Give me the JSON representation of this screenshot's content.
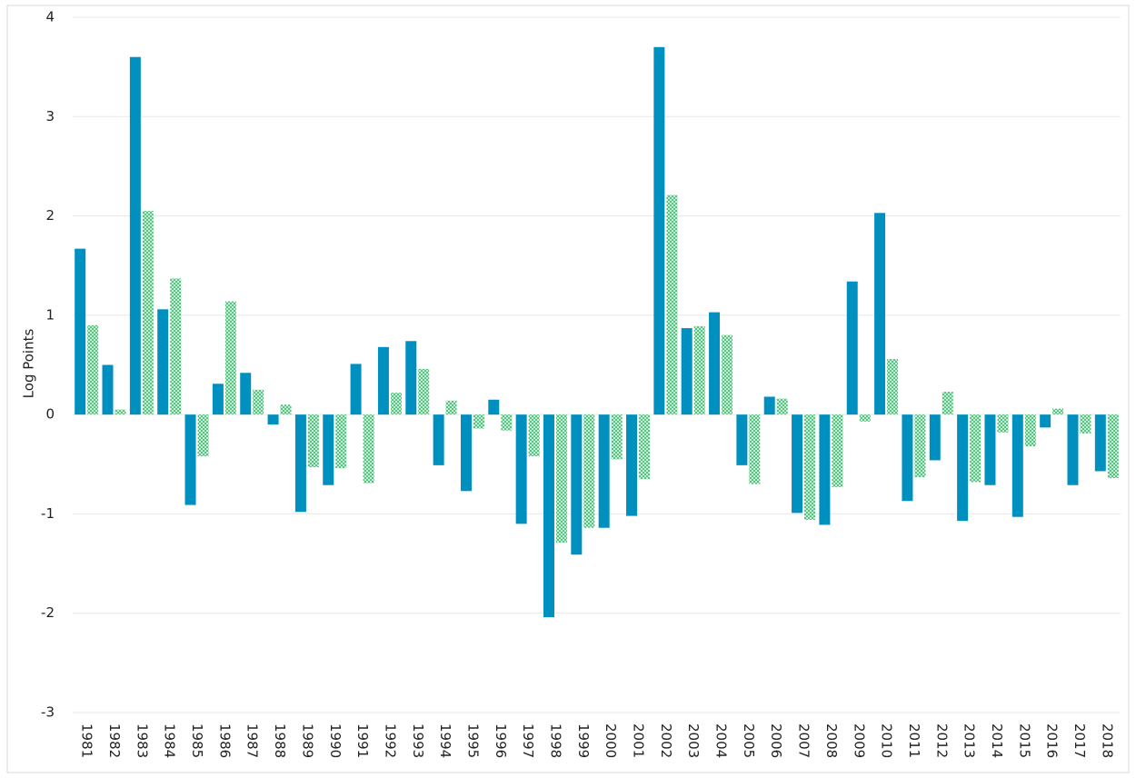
{
  "chart_data": {
    "type": "bar",
    "y_label": "Log Points",
    "categories": [
      "1981",
      "1982",
      "1983",
      "1984",
      "1985",
      "1986",
      "1987",
      "1988",
      "1989",
      "1990",
      "1991",
      "1992",
      "1993",
      "1994",
      "1995",
      "1996",
      "1997",
      "1998",
      "1999",
      "2000",
      "2001",
      "2002",
      "2003",
      "2004",
      "2005",
      "2006",
      "2007",
      "2008",
      "2009",
      "2010",
      "2011",
      "2012",
      "2013",
      "2014",
      "2015",
      "2016",
      "2017",
      "2018"
    ],
    "series": [
      {
        "color": "#0090c0",
        "hatch": false,
        "values": [
          1.67,
          0.5,
          3.6,
          1.06,
          -0.91,
          0.31,
          0.42,
          -0.1,
          -0.98,
          -0.71,
          0.51,
          0.68,
          0.74,
          -0.51,
          -0.77,
          0.15,
          -1.1,
          -2.04,
          -1.41,
          -1.14,
          -1.02,
          3.7,
          0.87,
          1.03,
          -0.51,
          0.18,
          -0.99,
          -1.11,
          1.34,
          2.03,
          -0.87,
          -0.46,
          -1.07,
          -0.71,
          -1.03,
          -0.13,
          -0.71,
          -0.57
        ]
      },
      {
        "color": "#4cc07a",
        "hatch": true,
        "values": [
          0.9,
          0.05,
          2.05,
          1.37,
          -0.42,
          1.14,
          0.25,
          0.1,
          -0.53,
          -0.54,
          -0.69,
          0.22,
          0.46,
          0.14,
          -0.14,
          -0.16,
          -0.42,
          -1.29,
          -1.14,
          -0.45,
          -0.65,
          2.21,
          0.89,
          0.8,
          -0.7,
          0.16,
          -1.06,
          -0.73,
          -0.07,
          0.56,
          -0.63,
          0.23,
          -0.68,
          -0.18,
          -0.32,
          0.06,
          -0.19,
          -0.64
        ]
      }
    ],
    "ylim": [
      -3,
      4
    ],
    "yticks": [
      -3,
      -2,
      -1,
      0,
      1,
      2,
      3,
      4
    ],
    "grid": true
  }
}
